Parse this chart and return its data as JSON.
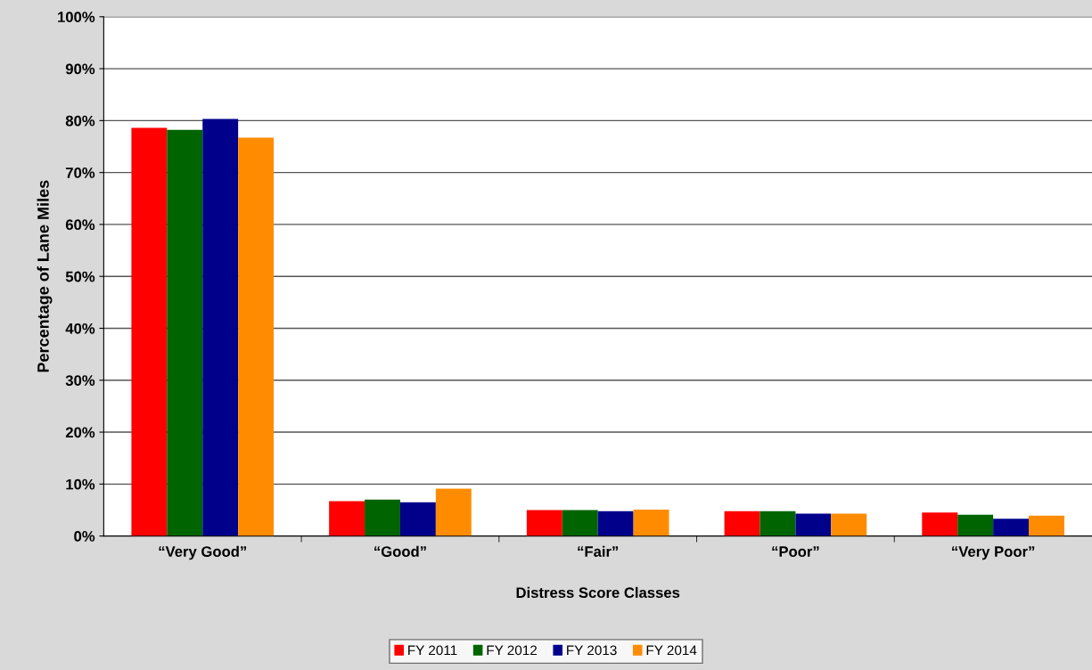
{
  "chart_data": {
    "type": "bar",
    "xlabel": "Distress Score Classes",
    "ylabel": "Percentage of Lane Miles",
    "categories": [
      "“Very Good”",
      "“Good”",
      "“Fair”",
      "“Poor”",
      "“Very Poor”"
    ],
    "series": [
      {
        "name": "FY 2011",
        "color": "#ff0000",
        "values": [
          78.6,
          6.7,
          5.0,
          4.8,
          4.5
        ]
      },
      {
        "name": "FY 2012",
        "color": "#006400",
        "values": [
          78.2,
          7.0,
          5.0,
          4.8,
          4.1
        ]
      },
      {
        "name": "FY 2013",
        "color": "#00008b",
        "values": [
          80.3,
          6.5,
          4.8,
          4.3,
          3.3
        ]
      },
      {
        "name": "FY 2014",
        "color": "#ff8c00",
        "values": [
          76.7,
          9.1,
          5.1,
          4.3,
          3.9
        ]
      }
    ],
    "ylim": [
      0,
      100
    ],
    "yticks": [
      {
        "value": 0,
        "label": "0%"
      },
      {
        "value": 10,
        "label": "10%"
      },
      {
        "value": 20,
        "label": "20%"
      },
      {
        "value": 30,
        "label": "30%"
      },
      {
        "value": 40,
        "label": "40%"
      },
      {
        "value": 50,
        "label": "50%"
      },
      {
        "value": 60,
        "label": "60%"
      },
      {
        "value": 70,
        "label": "70%"
      },
      {
        "value": 80,
        "label": "80%"
      },
      {
        "value": 90,
        "label": "90%"
      },
      {
        "value": 100,
        "label": "100%"
      }
    ],
    "grid": "y",
    "legend": "bottom"
  }
}
